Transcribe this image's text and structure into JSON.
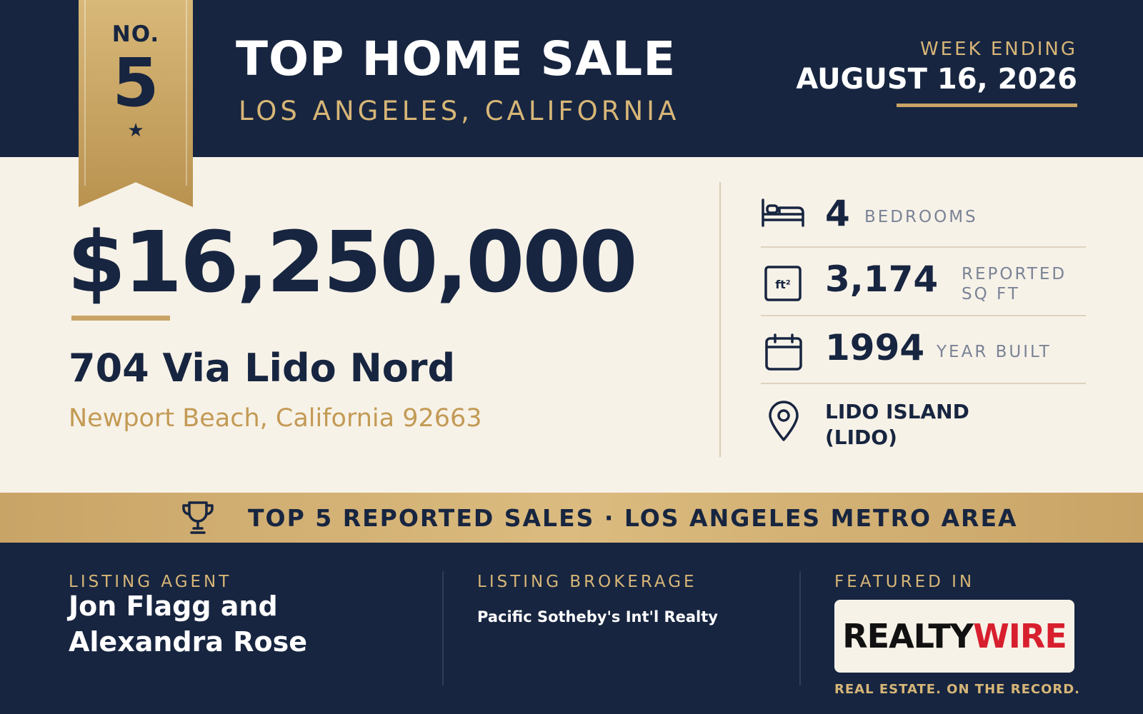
{
  "ribbon": {
    "prefix": "NO.",
    "rank": "5",
    "star": "★"
  },
  "header": {
    "title": "TOP HOME SALE",
    "region": "LOS ANGELES, CALIFORNIA",
    "week_label": "WEEK ENDING",
    "week_date": "AUGUST 16, 2026"
  },
  "sale": {
    "price": "$16,250,000",
    "street": "704 Via Lido Nord",
    "city_line": "Newport Beach, California 92663"
  },
  "stats": {
    "bedrooms": {
      "value": "4",
      "label": "BEDROOMS",
      "icon": "bed-icon"
    },
    "sqft": {
      "value": "3,174",
      "label_line1": "REPORTED",
      "label_line2": "SQ FT",
      "icon": "square-feet-icon",
      "icon_text": "ft²"
    },
    "year": {
      "value": "1994",
      "label": "YEAR BUILT",
      "icon": "calendar-icon"
    },
    "neighborhood": {
      "line1": "LIDO ISLAND",
      "line2": "(LIDO)",
      "icon": "location-pin-icon"
    }
  },
  "band": {
    "text": "TOP 5 REPORTED SALES · LOS ANGELES METRO AREA",
    "icon": "trophy-icon"
  },
  "footer": {
    "agent_label": "LISTING AGENT",
    "agent_line1": "Jon Flagg and",
    "agent_line2": "Alexandra Rose",
    "brokerage_label": "LISTING BROKERAGE",
    "brokerage": "Pacific Sotheby's Int'l Realty",
    "featured_label": "FEATURED IN",
    "logo_part1": "REALTY",
    "logo_part2": "WIRE",
    "tagline": "REAL ESTATE. ON THE RECORD."
  },
  "colors": {
    "navy": "#172540",
    "gold": "#c9a467",
    "cream": "#f7f2e8",
    "logo_red": "#d81f2e"
  }
}
